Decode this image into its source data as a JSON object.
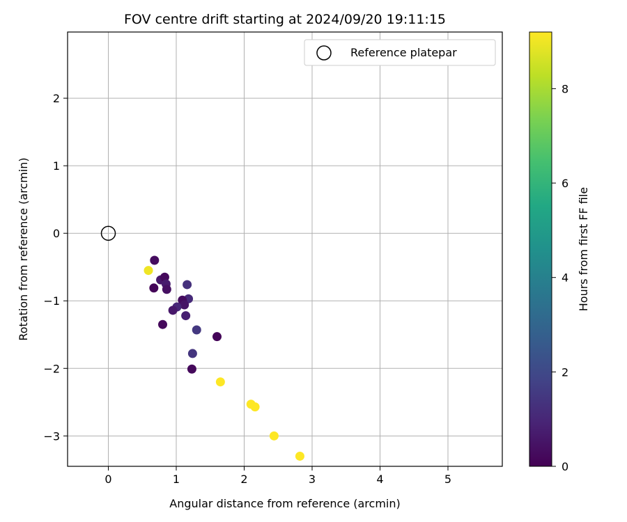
{
  "chart_data": {
    "type": "scatter",
    "title": "FOV centre drift starting at 2024/09/20 19:11:15",
    "xlabel": "Angular distance from reference (arcmin)",
    "ylabel": "Rotation from reference (arcmin)",
    "xlim": [
      -0.6,
      5.8
    ],
    "ylim": [
      -3.45,
      2.98
    ],
    "xticks": [
      0,
      1,
      2,
      3,
      4,
      5
    ],
    "xtick_labels": [
      "0",
      "1",
      "2",
      "3",
      "4",
      "5"
    ],
    "yticks": [
      -3,
      -2,
      -1,
      0,
      1,
      2
    ],
    "ytick_labels": [
      "−3",
      "−2",
      "−1",
      "0",
      "1",
      "2"
    ],
    "grid": true,
    "legend": {
      "position": "top-right",
      "entries": [
        "Reference platepar"
      ]
    },
    "reference_point": {
      "x": 0,
      "y": 0,
      "label": "Reference platepar"
    },
    "colorbar": {
      "label": "Hours from first FF file",
      "colormap": "viridis",
      "range": [
        0,
        9.2
      ],
      "ticks": [
        0,
        2,
        4,
        6,
        8
      ],
      "tick_labels": [
        "0",
        "2",
        "4",
        "6",
        "8"
      ]
    },
    "points": [
      {
        "x": 0.68,
        "y": -0.4,
        "hours": 0.3
      },
      {
        "x": 0.59,
        "y": -0.55,
        "hours": 9.0
      },
      {
        "x": 0.77,
        "y": -0.69,
        "hours": 0.6
      },
      {
        "x": 0.83,
        "y": -0.65,
        "hours": 0.2
      },
      {
        "x": 0.85,
        "y": -0.75,
        "hours": 0.7
      },
      {
        "x": 0.67,
        "y": -0.81,
        "hours": 0.1
      },
      {
        "x": 0.86,
        "y": -0.83,
        "hours": 0.4
      },
      {
        "x": 1.16,
        "y": -0.76,
        "hours": 1.3
      },
      {
        "x": 1.18,
        "y": -0.97,
        "hours": 1.1
      },
      {
        "x": 1.09,
        "y": -0.99,
        "hours": 0.3
      },
      {
        "x": 1.12,
        "y": -1.06,
        "hours": 0.5
      },
      {
        "x": 1.01,
        "y": -1.09,
        "hours": 1.0
      },
      {
        "x": 0.95,
        "y": -1.14,
        "hours": 0.6
      },
      {
        "x": 1.14,
        "y": -1.22,
        "hours": 0.8
      },
      {
        "x": 0.8,
        "y": -1.35,
        "hours": 0.2
      },
      {
        "x": 1.3,
        "y": -1.43,
        "hours": 1.5
      },
      {
        "x": 1.6,
        "y": -1.53,
        "hours": 0.1
      },
      {
        "x": 1.24,
        "y": -1.78,
        "hours": 1.4
      },
      {
        "x": 1.23,
        "y": -2.01,
        "hours": 0.2
      },
      {
        "x": 1.65,
        "y": -2.2,
        "hours": 9.2
      },
      {
        "x": 2.1,
        "y": -2.53,
        "hours": 9.2
      },
      {
        "x": 2.16,
        "y": -2.57,
        "hours": 9.2
      },
      {
        "x": 2.44,
        "y": -3.0,
        "hours": 9.2
      },
      {
        "x": 2.82,
        "y": -3.3,
        "hours": 9.2
      }
    ]
  }
}
